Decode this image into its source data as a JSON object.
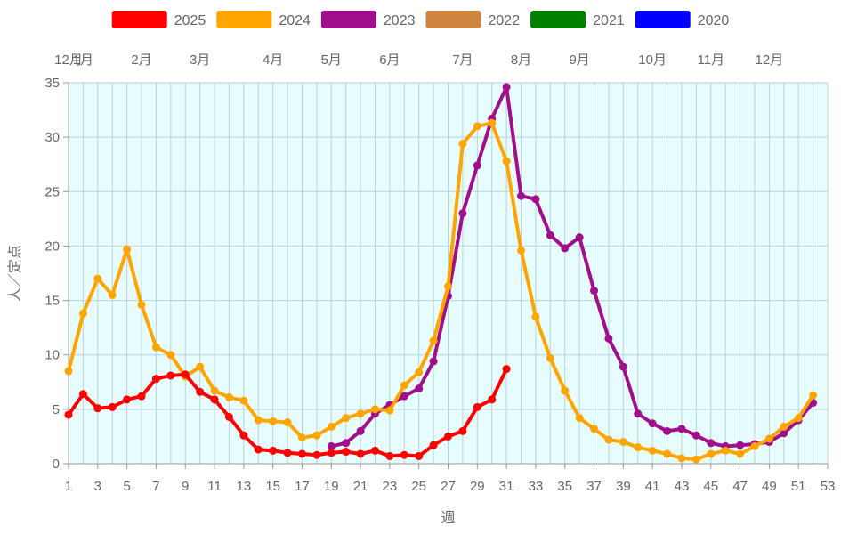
{
  "chart_data": {
    "type": "line",
    "title": "",
    "xlabel": "週",
    "ylabel": "人／定点",
    "xlim": [
      1,
      53
    ],
    "ylim": [
      0,
      35
    ],
    "x_ticks": [
      1,
      3,
      5,
      7,
      9,
      11,
      13,
      15,
      17,
      19,
      21,
      23,
      25,
      27,
      29,
      31,
      33,
      35,
      37,
      39,
      41,
      43,
      45,
      47,
      49,
      51,
      53
    ],
    "y_ticks": [
      0,
      5,
      10,
      15,
      20,
      25,
      30,
      35
    ],
    "grid": true,
    "plot_background": "#e6fcfd",
    "grid_color": "#b9d3da",
    "legend_position": "top",
    "month_axis": [
      {
        "label": "12月",
        "week": 1
      },
      {
        "label": "1月",
        "week": 2
      },
      {
        "label": "2月",
        "week": 6
      },
      {
        "label": "3月",
        "week": 10
      },
      {
        "label": "4月",
        "week": 15
      },
      {
        "label": "5月",
        "week": 19
      },
      {
        "label": "6月",
        "week": 23
      },
      {
        "label": "7月",
        "week": 28
      },
      {
        "label": "8月",
        "week": 32
      },
      {
        "label": "9月",
        "week": 36
      },
      {
        "label": "10月",
        "week": 41
      },
      {
        "label": "11月",
        "week": 45
      },
      {
        "label": "12月",
        "week": 49
      }
    ],
    "series": [
      {
        "name": "2025",
        "color": "#ff0000",
        "x": [
          1,
          2,
          3,
          4,
          5,
          6,
          7,
          8,
          9,
          10,
          11,
          12,
          13,
          14,
          15,
          16,
          17,
          18,
          19,
          20,
          21,
          22,
          23,
          24,
          25,
          26,
          27,
          28,
          29,
          30,
          31
        ],
        "values": [
          4.5,
          6.4,
          5.1,
          5.2,
          5.9,
          6.2,
          7.8,
          8.1,
          8.2,
          6.6,
          5.9,
          4.3,
          2.6,
          1.3,
          1.2,
          1.0,
          0.9,
          0.8,
          1.0,
          1.1,
          0.9,
          1.2,
          0.7,
          0.8,
          0.7,
          1.7,
          2.5,
          3.0,
          5.2,
          5.9,
          8.7
        ]
      },
      {
        "name": "2024",
        "color": "#ffa500",
        "x": [
          1,
          2,
          3,
          4,
          5,
          6,
          7,
          8,
          9,
          10,
          11,
          12,
          13,
          14,
          15,
          16,
          17,
          18,
          19,
          20,
          21,
          22,
          23,
          24,
          25,
          26,
          27,
          28,
          29,
          30,
          31,
          32,
          33,
          34,
          35,
          36,
          37,
          38,
          39,
          40,
          41,
          42,
          43,
          44,
          45,
          46,
          47,
          48,
          49,
          50,
          51,
          52
        ],
        "values": [
          8.5,
          13.8,
          17.0,
          15.5,
          19.7,
          14.6,
          10.7,
          10.0,
          8.0,
          8.9,
          6.7,
          6.1,
          5.8,
          4.0,
          3.9,
          3.8,
          2.4,
          2.6,
          3.4,
          4.2,
          4.6,
          5.0,
          4.9,
          7.2,
          8.4,
          11.3,
          16.3,
          29.4,
          31.0,
          31.3,
          27.8,
          19.6,
          13.5,
          9.7,
          6.7,
          4.2,
          3.2,
          2.2,
          2.0,
          1.5,
          1.2,
          0.9,
          0.5,
          0.4,
          0.9,
          1.2,
          0.9,
          1.6,
          2.3,
          3.4,
          4.2,
          6.3
        ]
      },
      {
        "name": "2023",
        "color": "#a10f8c",
        "x": [
          19,
          20,
          21,
          22,
          23,
          24,
          25,
          26,
          27,
          28,
          29,
          30,
          31,
          32,
          33,
          34,
          35,
          36,
          37,
          38,
          39,
          40,
          41,
          42,
          43,
          44,
          45,
          46,
          47,
          48,
          49,
          50,
          51,
          52
        ],
        "values": [
          1.6,
          1.9,
          3.0,
          4.6,
          5.4,
          6.2,
          6.9,
          9.4,
          15.4,
          23.0,
          27.4,
          31.7,
          34.6,
          24.6,
          24.3,
          21.0,
          19.8,
          20.8,
          15.9,
          11.5,
          8.9,
          4.6,
          3.7,
          3.0,
          3.2,
          2.6,
          1.9,
          1.6,
          1.7,
          1.8,
          2.0,
          2.8,
          4.0,
          5.6
        ]
      },
      {
        "name": "2022",
        "color": "#cd853f",
        "x": [],
        "values": []
      },
      {
        "name": "2021",
        "color": "#008000",
        "x": [],
        "values": []
      },
      {
        "name": "2020",
        "color": "#0000ff",
        "x": [],
        "values": []
      }
    ]
  }
}
